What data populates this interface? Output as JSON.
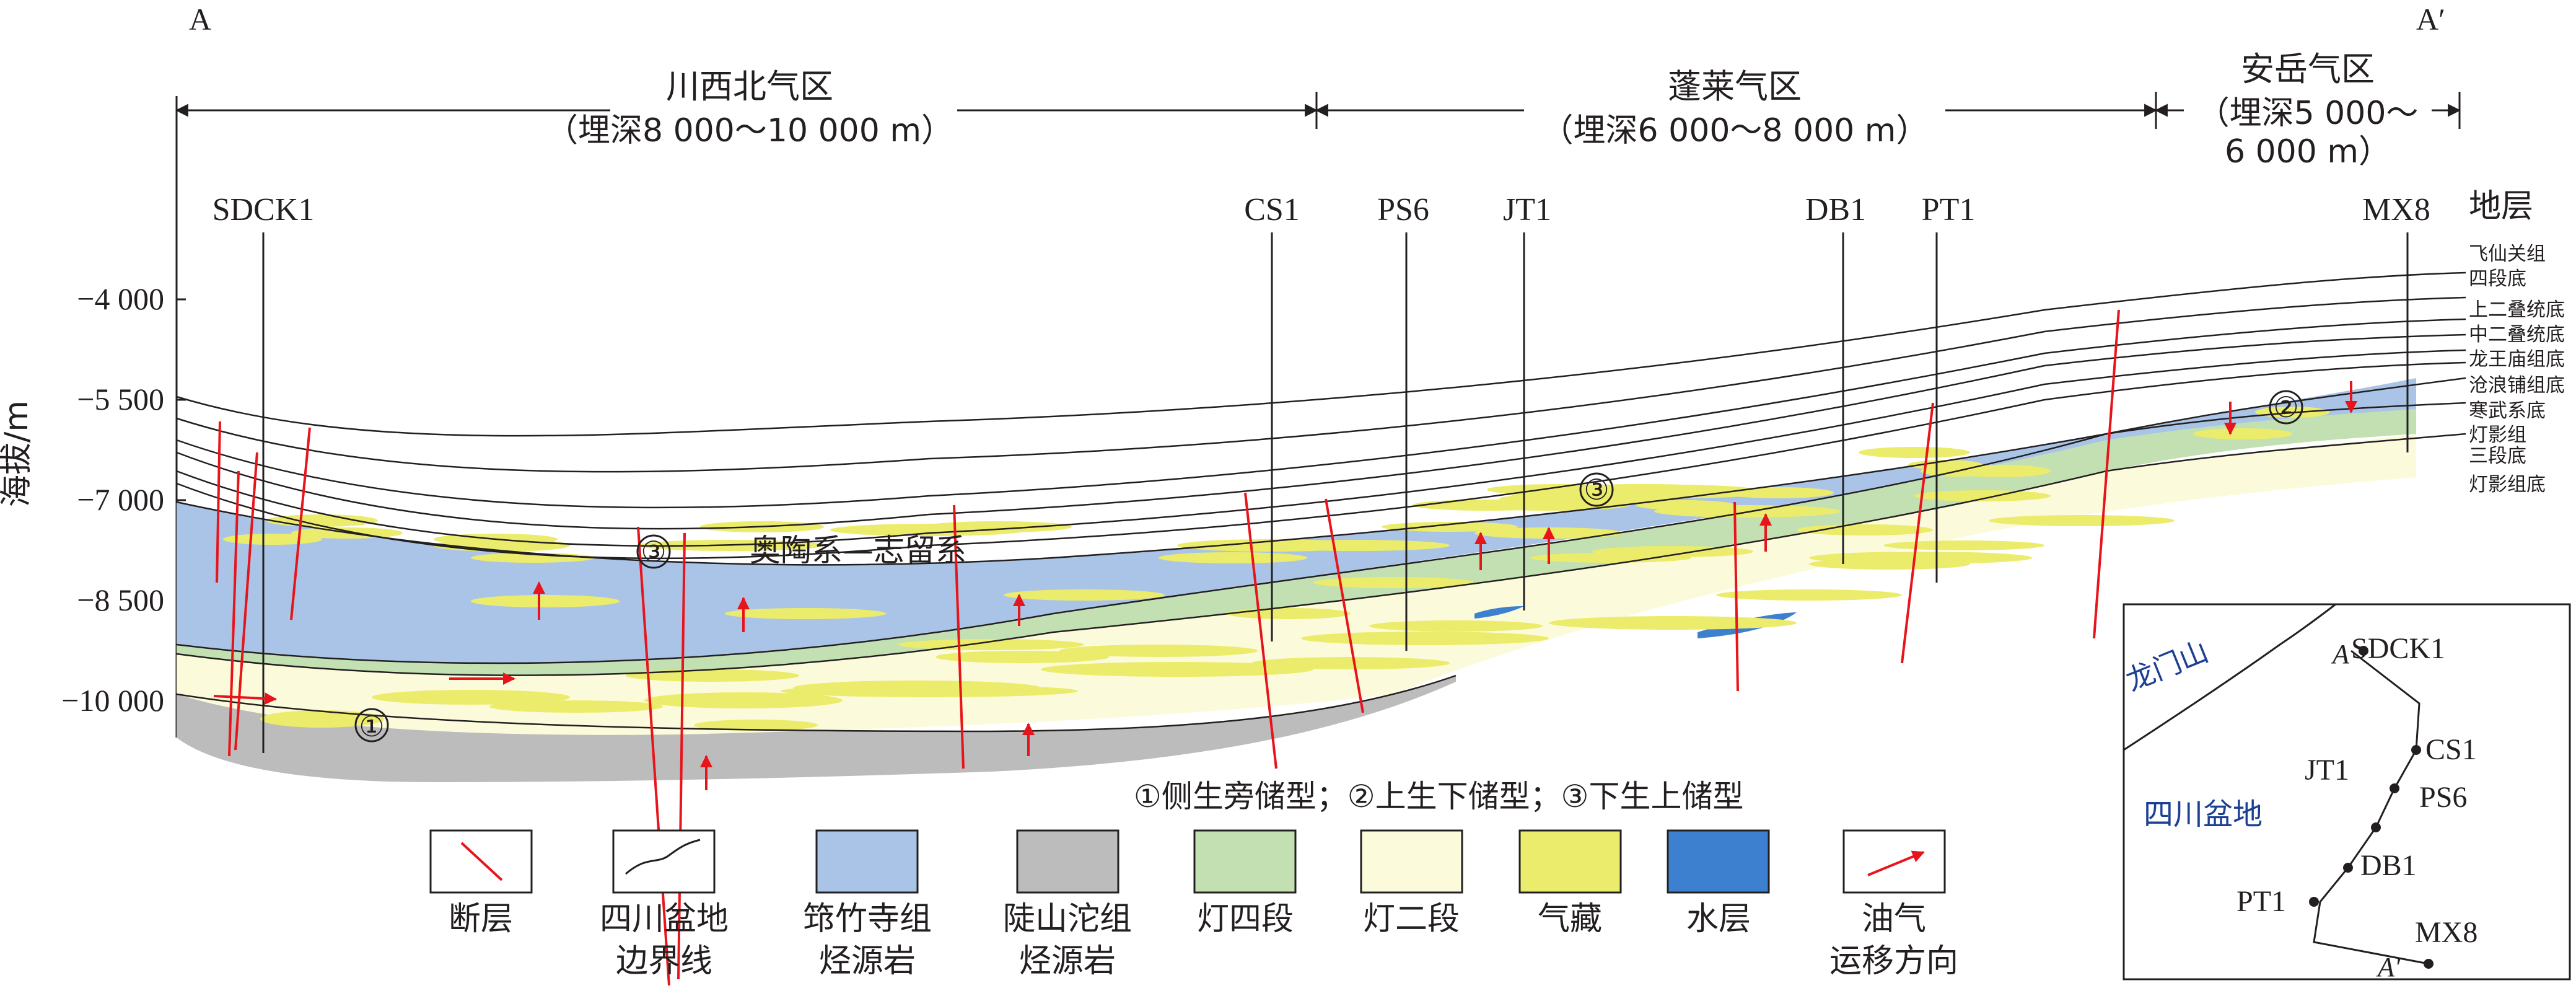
{
  "section": {
    "start_label": "A",
    "end_label": "A′"
  },
  "zones": [
    {
      "name": "川西北气区",
      "depth": "（埋深8 000～10 000 m）"
    },
    {
      "name": "蓬莱气区",
      "depth": "（埋深6 000～8 000 m）"
    },
    {
      "name": "安岳气区",
      "depth_line1": "（埋深5 000～",
      "depth_line2": "6 000 m）"
    }
  ],
  "wells": [
    "SDCK1",
    "CS1",
    "PS6",
    "JT1",
    "DB1",
    "PT1",
    "MX8"
  ],
  "y_axis": {
    "label": "海拔/m",
    "ticks": [
      "−4 000",
      "−5 500",
      "−7 000",
      "−8 500",
      "−10 000"
    ]
  },
  "strata": {
    "title": "地层",
    "labels": [
      "飞仙关组",
      "四段底",
      "上二叠统底",
      "中二叠统底",
      "龙王庙组底",
      "沧浪铺组底",
      "寒武系底",
      "灯影组",
      "三段底",
      "灯影组底"
    ]
  },
  "annotations": {
    "ordo_silurian": "奥陶系—志留系",
    "type1": "①",
    "type2": "②",
    "type3": "③",
    "types_legend": "①侧生旁储型；②上生下储型；③下生上储型"
  },
  "legend": [
    {
      "line1": "断层",
      "line2": "",
      "swatch": "fault"
    },
    {
      "line1": "四川盆地",
      "line2": "边界线",
      "swatch": "boundary"
    },
    {
      "line1": "筇竹寺组",
      "line2": "烃源岩",
      "swatch": "#a9c4e6"
    },
    {
      "line1": "陡山沱组",
      "line2": "烃源岩",
      "swatch": "#bcbcbd"
    },
    {
      "line1": "灯四段",
      "line2": "",
      "swatch": "#c2e0b2"
    },
    {
      "line1": "灯二段",
      "line2": "",
      "swatch": "#fbfbdc"
    },
    {
      "line1": "气藏",
      "line2": "",
      "swatch": "#ecec6c"
    },
    {
      "line1": "水层",
      "line2": "",
      "swatch": "#3e80d0"
    },
    {
      "line1": "油气",
      "line2": "运移方向",
      "swatch": "arrow"
    }
  ],
  "inset_map": {
    "region1": "龙门山",
    "region2": "四川盆地",
    "wells": [
      "SDCK1",
      "CS1",
      "JT1",
      "PS6",
      "DB1",
      "PT1",
      "MX8"
    ],
    "start_label": "A",
    "end_label": "A′"
  },
  "colors": {
    "qiongzhusi": "#a9c4e6",
    "doushantuo": "#bcbcbd",
    "deng4": "#c2e0b2",
    "deng2": "#fbfbdc",
    "gas": "#ecec6c",
    "water": "#3e80d0",
    "fault": "#e8141b",
    "inset_text": "#1c3f94"
  }
}
